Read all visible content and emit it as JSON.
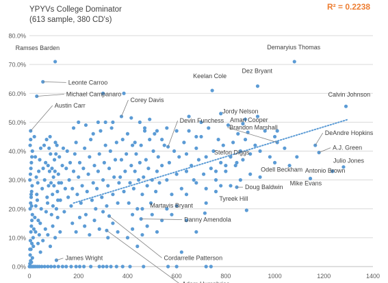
{
  "chart_data": {
    "type": "scatter",
    "title": "YPYVs College Dominator",
    "subtitle": "(613 sample, 380 CD's)",
    "r_squared_label": "R² = 0.2238",
    "xlim": [
      0,
      1400
    ],
    "ylim": [
      0,
      0.8
    ],
    "x_ticks": [
      0,
      200,
      400,
      600,
      800,
      1000,
      1200,
      1400
    ],
    "x_tick_labels": [
      "0",
      "200",
      "400",
      "600",
      "800",
      "1000",
      "1200",
      "1400"
    ],
    "y_ticks": [
      0,
      0.1,
      0.2,
      0.3,
      0.4,
      0.5,
      0.6,
      0.7,
      0.8
    ],
    "y_tick_labels": [
      "0.0%",
      "10.0%",
      "20.0%",
      "30.0%",
      "40.0%",
      "50.0%",
      "60.0%",
      "70.0%",
      "80.0%"
    ],
    "grid": true,
    "trendline": {
      "x": [
        180,
        1300
      ],
      "y": [
        0.22,
        0.51
      ],
      "style": "dotted"
    },
    "colors": {
      "points": "#5B9BD5",
      "trendline": "#5B9BD5",
      "r2": "#ED7D31",
      "grid": "#D9D9D9",
      "axis_text": "#595959",
      "label_text": "#404040"
    },
    "labeled_points": [
      {
        "name": "Ramses Barden",
        "x": 105,
        "y": 0.71
      },
      {
        "name": "Leonte Carroo",
        "x": 55,
        "y": 0.64
      },
      {
        "name": "Michael Campanaro",
        "x": 30,
        "y": 0.59
      },
      {
        "name": "Austin Carr",
        "x": 5,
        "y": 0.47
      },
      {
        "name": "Corey Davis",
        "x": 375,
        "y": 0.52
      },
      {
        "name": "Devin Funchess",
        "x": 565,
        "y": 0.415
      },
      {
        "name": "Demaryius Thomas",
        "x": 1080,
        "y": 0.71
      },
      {
        "name": "Dez Bryant",
        "x": 930,
        "y": 0.625
      },
      {
        "name": "Keelan Cole",
        "x": 745,
        "y": 0.61
      },
      {
        "name": "Calvin Johnson",
        "x": 1290,
        "y": 0.555
      },
      {
        "name": "Jordy Nelson",
        "x": 870,
        "y": 0.495
      },
      {
        "name": "Amari Cooper",
        "x": 890,
        "y": 0.465
      },
      {
        "name": "Brandon Marshall",
        "x": 1010,
        "y": 0.43
      },
      {
        "name": "DeAndre Hopkins",
        "x": 1165,
        "y": 0.42
      },
      {
        "name": "A.J. Green",
        "x": 1180,
        "y": 0.395
      },
      {
        "name": "Stefon Diggs",
        "x": 845,
        "y": 0.36
      },
      {
        "name": "Julio Jones",
        "x": 1280,
        "y": 0.345
      },
      {
        "name": "Antonio Brown",
        "x": 1235,
        "y": 0.33
      },
      {
        "name": "Odell Beckham",
        "x": 1060,
        "y": 0.35
      },
      {
        "name": "Mike Evans",
        "x": 1145,
        "y": 0.305
      },
      {
        "name": "Doug Baldwin",
        "x": 845,
        "y": 0.275
      },
      {
        "name": "Tyreek Hill",
        "x": 885,
        "y": 0.195
      },
      {
        "name": "Martavis Bryant",
        "x": 715,
        "y": 0.185
      },
      {
        "name": "Danny Amendola",
        "x": 455,
        "y": 0.165
      },
      {
        "name": "Cordarrelle Patterson",
        "x": 325,
        "y": 0.175
      },
      {
        "name": "Adam Humphries",
        "x": 315,
        "y": 0.125
      },
      {
        "name": "James Wright",
        "x": 110,
        "y": 0.022
      }
    ],
    "points": [
      [
        0,
        0
      ],
      [
        3,
        0
      ],
      [
        6,
        0
      ],
      [
        10,
        0
      ],
      [
        14,
        0
      ],
      [
        18,
        0
      ],
      [
        24,
        0
      ],
      [
        32,
        0
      ],
      [
        40,
        0
      ],
      [
        50,
        0
      ],
      [
        62,
        0
      ],
      [
        75,
        0
      ],
      [
        88,
        0
      ],
      [
        102,
        0
      ],
      [
        118,
        0
      ],
      [
        135,
        0
      ],
      [
        150,
        0
      ],
      [
        170,
        0
      ],
      [
        190,
        0
      ],
      [
        205,
        0
      ],
      [
        222,
        0
      ],
      [
        250,
        0
      ],
      [
        285,
        0
      ],
      [
        300,
        0
      ],
      [
        315,
        0
      ],
      [
        332,
        0
      ],
      [
        355,
        0
      ],
      [
        380,
        0
      ],
      [
        410,
        0
      ],
      [
        465,
        0
      ],
      [
        565,
        0
      ],
      [
        600,
        0
      ],
      [
        720,
        0
      ],
      [
        740,
        0
      ],
      [
        2,
        0.01
      ],
      [
        5,
        0.02
      ],
      [
        8,
        0.015
      ],
      [
        3,
        0.04
      ],
      [
        6,
        0.06
      ],
      [
        10,
        0.08
      ],
      [
        12,
        0.03
      ],
      [
        2,
        0.06
      ],
      [
        4,
        0.09
      ],
      [
        6,
        0.12
      ],
      [
        8,
        0.14
      ],
      [
        10,
        0.16
      ],
      [
        12,
        0.18
      ],
      [
        3,
        0.2
      ],
      [
        5,
        0.22
      ],
      [
        7,
        0.24
      ],
      [
        9,
        0.26
      ],
      [
        11,
        0.28
      ],
      [
        2,
        0.3
      ],
      [
        4,
        0.32
      ],
      [
        6,
        0.34
      ],
      [
        8,
        0.36
      ],
      [
        10,
        0.38
      ],
      [
        12,
        0.4
      ],
      [
        3,
        0.42
      ],
      [
        5,
        0.44
      ],
      [
        7,
        0.25
      ],
      [
        9,
        0.21
      ],
      [
        15,
        0.1
      ],
      [
        18,
        0.13
      ],
      [
        22,
        0.17
      ],
      [
        26,
        0.21
      ],
      [
        30,
        0.25
      ],
      [
        34,
        0.29
      ],
      [
        38,
        0.33
      ],
      [
        42,
        0.37
      ],
      [
        46,
        0.41
      ],
      [
        20,
        0.45
      ],
      [
        24,
        0.38
      ],
      [
        28,
        0.31
      ],
      [
        32,
        0.23
      ],
      [
        36,
        0.16
      ],
      [
        40,
        0.11
      ],
      [
        44,
        0.15
      ],
      [
        48,
        0.2
      ],
      [
        52,
        0.27
      ],
      [
        56,
        0.34
      ],
      [
        60,
        0.42
      ],
      [
        16,
        0.07
      ],
      [
        25,
        0.12
      ],
      [
        35,
        0.08
      ],
      [
        45,
        0.05
      ],
      [
        55,
        0.09
      ],
      [
        65,
        0.13
      ],
      [
        75,
        0.11
      ],
      [
        85,
        0.07
      ],
      [
        95,
        0.14
      ],
      [
        105,
        0.1
      ],
      [
        115,
        0.17
      ],
      [
        125,
        0.12
      ],
      [
        62,
        0.3
      ],
      [
        66,
        0.36
      ],
      [
        70,
        0.44
      ],
      [
        74,
        0.22
      ],
      [
        78,
        0.28
      ],
      [
        82,
        0.33
      ],
      [
        86,
        0.39
      ],
      [
        90,
        0.18
      ],
      [
        94,
        0.25
      ],
      [
        98,
        0.31
      ],
      [
        102,
        0.37
      ],
      [
        106,
        0.43
      ],
      [
        110,
        0.2
      ],
      [
        114,
        0.26
      ],
      [
        118,
        0.32
      ],
      [
        122,
        0.38
      ],
      [
        126,
        0.23
      ],
      [
        130,
        0.29
      ],
      [
        134,
        0.35
      ],
      [
        138,
        0.41
      ],
      [
        142,
        0.19
      ],
      [
        146,
        0.27
      ],
      [
        150,
        0.34
      ],
      [
        154,
        0.4
      ],
      [
        158,
        0.24
      ],
      [
        162,
        0.3
      ],
      [
        166,
        0.36
      ],
      [
        68,
        0.19
      ],
      [
        72,
        0.24
      ],
      [
        76,
        0.35
      ],
      [
        80,
        0.41
      ],
      [
        84,
        0.45
      ],
      [
        88,
        0.29
      ],
      [
        92,
        0.34
      ],
      [
        96,
        0.21
      ],
      [
        100,
        0.28
      ],
      [
        104,
        0.33
      ],
      [
        108,
        0.39
      ],
      [
        112,
        0.42
      ],
      [
        116,
        0.23
      ],
      [
        120,
        0.29
      ],
      [
        170,
        0.21
      ],
      [
        175,
        0.27
      ],
      [
        180,
        0.33
      ],
      [
        185,
        0.39
      ],
      [
        190,
        0.43
      ],
      [
        195,
        0.25
      ],
      [
        200,
        0.31
      ],
      [
        205,
        0.36
      ],
      [
        210,
        0.22
      ],
      [
        215,
        0.28
      ],
      [
        220,
        0.34
      ],
      [
        225,
        0.41
      ],
      [
        230,
        0.18
      ],
      [
        235,
        0.26
      ],
      [
        240,
        0.32
      ],
      [
        245,
        0.38
      ],
      [
        250,
        0.44
      ],
      [
        255,
        0.23
      ],
      [
        260,
        0.29
      ],
      [
        265,
        0.35
      ],
      [
        270,
        0.2
      ],
      [
        275,
        0.27
      ],
      [
        280,
        0.33
      ],
      [
        285,
        0.39
      ],
      [
        290,
        0.47
      ],
      [
        295,
        0.24
      ],
      [
        300,
        0.3
      ],
      [
        305,
        0.36
      ],
      [
        310,
        0.42
      ],
      [
        315,
        0.21
      ],
      [
        320,
        0.28
      ],
      [
        325,
        0.34
      ],
      [
        330,
        0.4
      ],
      [
        335,
        0.48
      ],
      [
        340,
        0.25
      ],
      [
        345,
        0.31
      ],
      [
        350,
        0.37
      ],
      [
        355,
        0.43
      ],
      [
        360,
        0.22
      ],
      [
        365,
        0.29
      ],
      [
        175,
        0.15
      ],
      [
        190,
        0.12
      ],
      [
        205,
        0.17
      ],
      [
        225,
        0.14
      ],
      [
        245,
        0.11
      ],
      [
        265,
        0.16
      ],
      [
        285,
        0.13
      ],
      [
        300,
        0.19
      ],
      [
        320,
        0.1
      ],
      [
        340,
        0.15
      ],
      [
        360,
        0.12
      ],
      [
        180,
        0.48
      ],
      [
        200,
        0.5
      ],
      [
        230,
        0.49
      ],
      [
        260,
        0.46
      ],
      [
        280,
        0.5
      ],
      [
        310,
        0.5
      ],
      [
        340,
        0.5
      ],
      [
        300,
        0.6
      ],
      [
        385,
        0.6
      ],
      [
        370,
        0.31
      ],
      [
        375,
        0.37
      ],
      [
        380,
        0.44
      ],
      [
        385,
        0.26
      ],
      [
        390,
        0.33
      ],
      [
        395,
        0.39
      ],
      [
        400,
        0.46
      ],
      [
        405,
        0.22
      ],
      [
        410,
        0.29
      ],
      [
        415,
        0.35
      ],
      [
        420,
        0.42
      ],
      [
        425,
        0.27
      ],
      [
        430,
        0.33
      ],
      [
        435,
        0.39
      ],
      [
        440,
        0.2
      ],
      [
        445,
        0.3
      ],
      [
        450,
        0.36
      ],
      [
        455,
        0.42
      ],
      [
        460,
        0.25
      ],
      [
        465,
        0.31
      ],
      [
        470,
        0.47
      ],
      [
        475,
        0.37
      ],
      [
        480,
        0.28
      ],
      [
        485,
        0.34
      ],
      [
        490,
        0.44
      ],
      [
        495,
        0.22
      ],
      [
        500,
        0.3
      ],
      [
        505,
        0.4
      ],
      [
        510,
        0.46
      ],
      [
        515,
        0.26
      ],
      [
        520,
        0.33
      ],
      [
        525,
        0.38
      ],
      [
        530,
        0.29
      ],
      [
        540,
        0.35
      ],
      [
        550,
        0.42
      ],
      [
        400,
        0.1
      ],
      [
        420,
        0.13
      ],
      [
        440,
        0.07
      ],
      [
        460,
        0.11
      ],
      [
        480,
        0.14
      ],
      [
        500,
        0.18
      ],
      [
        520,
        0.12
      ],
      [
        540,
        0.16
      ],
      [
        560,
        0.2
      ],
      [
        420,
        0.18
      ],
      [
        460,
        0.2
      ],
      [
        560,
        0.3
      ],
      [
        570,
        0.36
      ],
      [
        580,
        0.25
      ],
      [
        590,
        0.4
      ],
      [
        600,
        0.32
      ],
      [
        610,
        0.38
      ],
      [
        620,
        0.27
      ],
      [
        630,
        0.43
      ],
      [
        640,
        0.33
      ],
      [
        650,
        0.47
      ],
      [
        660,
        0.35
      ],
      [
        670,
        0.3
      ],
      [
        680,
        0.41
      ],
      [
        690,
        0.37
      ],
      [
        700,
        0.45
      ],
      [
        710,
        0.32
      ],
      [
        720,
        0.38
      ],
      [
        730,
        0.48
      ],
      [
        740,
        0.34
      ],
      [
        750,
        0.4
      ],
      [
        760,
        0.3
      ],
      [
        770,
        0.44
      ],
      [
        780,
        0.36
      ],
      [
        790,
        0.42
      ],
      [
        800,
        0.33
      ],
      [
        810,
        0.49
      ],
      [
        820,
        0.38
      ],
      [
        830,
        0.43
      ],
      [
        840,
        0.35
      ],
      [
        850,
        0.46
      ],
      [
        860,
        0.4
      ],
      [
        870,
        0.37
      ],
      [
        880,
        0.44
      ],
      [
        900,
        0.39
      ],
      [
        920,
        0.42
      ],
      [
        940,
        0.4
      ],
      [
        960,
        0.47
      ],
      [
        560,
        0.48
      ],
      [
        600,
        0.47
      ],
      [
        640,
        0.39
      ],
      [
        680,
        0.45
      ],
      [
        720,
        0.27
      ],
      [
        760,
        0.26
      ],
      [
        800,
        0.35
      ],
      [
        820,
        0.28
      ],
      [
        860,
        0.3
      ],
      [
        900,
        0.32
      ],
      [
        940,
        0.31
      ],
      [
        980,
        0.38
      ],
      [
        1000,
        0.36
      ],
      [
        1040,
        0.41
      ],
      [
        1090,
        0.38
      ],
      [
        1000,
        0.45
      ],
      [
        600,
        0.21
      ],
      [
        640,
        0.25
      ],
      [
        680,
        0.29
      ],
      [
        720,
        0.22
      ],
      [
        760,
        0.33
      ],
      [
        780,
        0.28
      ],
      [
        640,
        0.16
      ],
      [
        680,
        0.12
      ],
      [
        580,
        0.18
      ],
      [
        620,
        0.05
      ],
      [
        415,
        0.515
      ],
      [
        430,
        0.43
      ],
      [
        450,
        0.5
      ],
      [
        470,
        0.48
      ],
      [
        490,
        0.51
      ],
      [
        520,
        0.47
      ],
      [
        540,
        0.44
      ],
      [
        650,
        0.52
      ],
      [
        700,
        0.5
      ],
      [
        780,
        0.53
      ],
      [
        880,
        0.51
      ],
      [
        930,
        0.52
      ],
      [
        1010,
        0.47
      ]
    ]
  }
}
